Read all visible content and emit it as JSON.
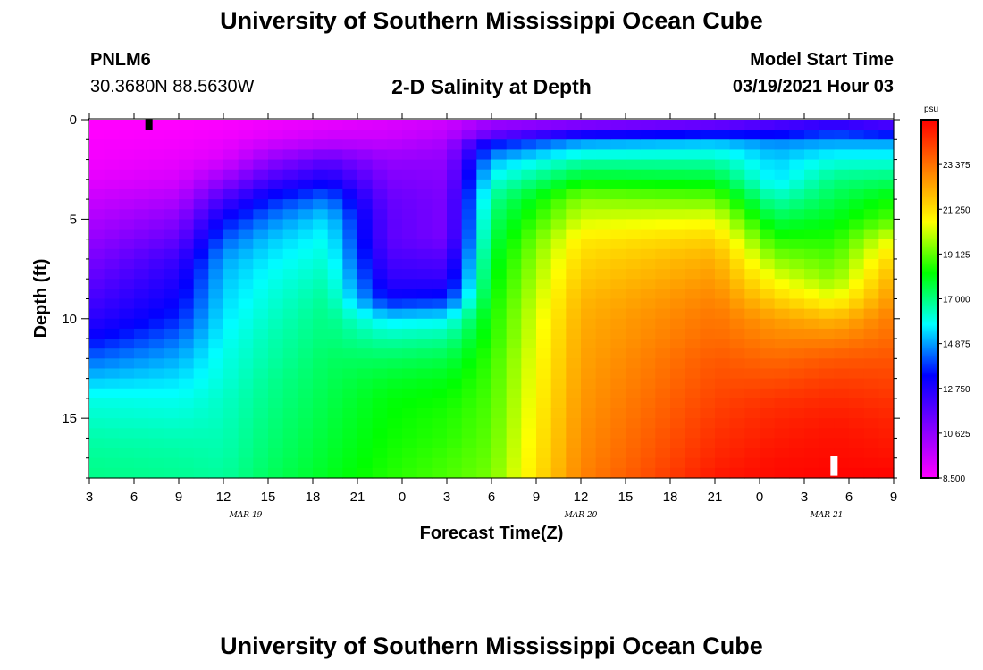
{
  "header": {
    "top_title": "University of Southern Mississippi Ocean Cube",
    "bottom_title": "University of Southern Mississippi Ocean Cube",
    "station_id": "PNLM6",
    "station_coords": "30.3680N 88.5630W",
    "model_start_label": "Model Start Time",
    "model_start_value": "03/19/2021 Hour 03"
  },
  "colors": {
    "palette": [
      "#ff00ff",
      "#8000ff",
      "#0000ff",
      "#00ffff",
      "#00ff00",
      "#ffff00",
      "#ff8000",
      "#ff0000"
    ],
    "marker_top": "#000000",
    "marker_bottom": "#ffffff"
  },
  "chart_data": {
    "type": "heatmap",
    "title": "2-D Salinity at Depth",
    "xlabel": "Forecast Time(Z)",
    "ylabel": "Depth (ft)",
    "x_ticks": [
      "3",
      "6",
      "9",
      "12",
      "15",
      "18",
      "21",
      "0",
      "3",
      "6",
      "9",
      "12",
      "15",
      "18",
      "21",
      "0",
      "3",
      "6",
      "9"
    ],
    "x_range_hours": [
      0,
      54
    ],
    "date_labels": [
      {
        "text": "MAR 19",
        "hour": 10.5
      },
      {
        "text": "MAR 20",
        "hour": 33
      },
      {
        "text": "MAR 21",
        "hour": 49.5
      }
    ],
    "y_ticks": [
      0,
      5,
      10,
      15
    ],
    "y_range_ft": [
      0,
      18
    ],
    "y_inverted": true,
    "colorbar": {
      "unit": "psu",
      "min": 8.5,
      "max": 25.5,
      "ticks": [
        "23.375",
        "21.250",
        "19.125",
        "17.000",
        "14.875",
        "12.750",
        "10.625",
        "8.500"
      ]
    },
    "markers": [
      {
        "hour": 4,
        "depth_ft": 0.25
      },
      {
        "hour": 50,
        "depth_ft": 17.4
      }
    ],
    "profile_depths_ft": [
      0.25,
      0.75,
      1.25,
      2,
      3,
      4,
      5,
      6,
      7,
      8,
      9,
      10,
      11,
      12,
      13,
      14,
      15,
      16,
      17,
      17.75
    ],
    "profiles": [
      {
        "hour": 0,
        "values": [
          8.5,
          8.5,
          8.6,
          8.7,
          9.0,
          9.5,
          10.0,
          10.5,
          11.0,
          11.5,
          12.0,
          12.5,
          13.3,
          14.3,
          15.2,
          16.0,
          16.3,
          16.6,
          16.8,
          16.9
        ]
      },
      {
        "hour": 6,
        "values": [
          8.5,
          8.6,
          8.7,
          8.9,
          9.3,
          10.0,
          10.8,
          11.5,
          12.3,
          12.8,
          13.2,
          13.7,
          14.4,
          15.0,
          15.5,
          15.9,
          16.2,
          16.5,
          16.7,
          16.8
        ]
      },
      {
        "hour": 9,
        "values": [
          8.6,
          8.7,
          8.9,
          9.2,
          10.5,
          12.0,
          13.3,
          14.2,
          14.9,
          15.2,
          15.4,
          15.6,
          15.8,
          16.0,
          16.1,
          16.3,
          16.4,
          16.5,
          16.6,
          16.7
        ]
      },
      {
        "hour": 12,
        "values": [
          8.8,
          9.0,
          9.5,
          10.5,
          12.0,
          13.5,
          14.5,
          15.2,
          15.6,
          15.9,
          16.1,
          16.3,
          16.5,
          16.6,
          16.8,
          16.9,
          17.0,
          17.1,
          17.2,
          17.3
        ]
      },
      {
        "hour": 16,
        "values": [
          9.0,
          9.4,
          10.0,
          11.5,
          13.0,
          14.5,
          15.5,
          15.9,
          16.2,
          16.5,
          16.8,
          17.0,
          17.1,
          17.3,
          17.4,
          17.5,
          17.6,
          17.7,
          17.8,
          17.9
        ]
      },
      {
        "hour": 20,
        "values": [
          9.2,
          9.4,
          9.8,
          10.5,
          11.0,
          11.4,
          11.6,
          11.6,
          12.0,
          12.5,
          13.3,
          15.5,
          16.6,
          17.3,
          17.8,
          18.1,
          18.2,
          18.3,
          18.4,
          18.5
        ]
      },
      {
        "hour": 24,
        "values": [
          9.5,
          9.8,
          10.2,
          10.6,
          10.8,
          11.0,
          11.0,
          11.1,
          11.8,
          12.4,
          13.6,
          15.7,
          16.8,
          17.5,
          18.0,
          18.3,
          18.5,
          18.6,
          18.8,
          18.9
        ]
      },
      {
        "hour": 27,
        "values": [
          10.5,
          11.5,
          13.5,
          15.0,
          16.0,
          16.8,
          17.2,
          17.5,
          17.8,
          18.0,
          18.2,
          18.4,
          18.5,
          18.7,
          18.8,
          18.9,
          19.0,
          19.1,
          19.2,
          19.3
        ]
      },
      {
        "hour": 33,
        "values": [
          11.0,
          13.0,
          15.0,
          16.5,
          18.0,
          19.5,
          20.2,
          21.0,
          21.4,
          21.7,
          22.0,
          22.2,
          22.3,
          22.4,
          22.5,
          22.6,
          22.7,
          22.8,
          22.9,
          23.0
        ]
      },
      {
        "hour": 42,
        "values": [
          11.5,
          13.5,
          15.3,
          16.5,
          17.8,
          19.2,
          20.5,
          21.5,
          22.2,
          22.6,
          23.0,
          23.3,
          23.5,
          23.8,
          24.0,
          24.2,
          24.4,
          24.6,
          24.8,
          25.0
        ]
      },
      {
        "hour": 46,
        "values": [
          12.0,
          13.3,
          14.7,
          15.3,
          15.5,
          16.5,
          17.5,
          18.5,
          19.5,
          20.5,
          21.5,
          22.5,
          23.0,
          23.5,
          24.0,
          24.5,
          24.8,
          25.0,
          25.2,
          25.3
        ]
      },
      {
        "hour": 50,
        "values": [
          12.5,
          14.0,
          15.0,
          16.0,
          17.0,
          17.5,
          18.0,
          18.5,
          19.0,
          19.5,
          20.5,
          22.0,
          23.0,
          23.8,
          24.3,
          24.7,
          25.0,
          25.2,
          25.3,
          25.4
        ]
      },
      {
        "hour": 54,
        "values": [
          12.0,
          13.5,
          15.0,
          16.0,
          17.2,
          18.3,
          19.0,
          20.5,
          21.5,
          22.2,
          22.7,
          23.2,
          23.5,
          23.9,
          24.2,
          24.5,
          24.8,
          25.0,
          25.2,
          25.4
        ]
      }
    ]
  }
}
